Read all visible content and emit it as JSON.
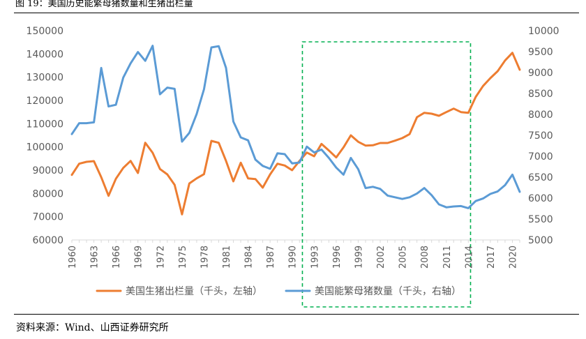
{
  "figure": {
    "title": "图 19：美国历史能繁母猪数量和生猪出栏量",
    "source": "资料来源：Wind、山西证券研究所"
  },
  "colors": {
    "hog_line": "#ED7D31",
    "sow_line": "#5B9BD5",
    "highlight_box": "#00B050",
    "axis": "#D9D9D9",
    "text": "#595959"
  },
  "chart_data": {
    "type": "line",
    "title": "",
    "x": [
      1960,
      1961,
      1962,
      1963,
      1964,
      1965,
      1966,
      1967,
      1968,
      1969,
      1970,
      1971,
      1972,
      1973,
      1974,
      1975,
      1976,
      1977,
      1978,
      1979,
      1980,
      1981,
      1982,
      1983,
      1984,
      1985,
      1986,
      1987,
      1988,
      1989,
      1990,
      1991,
      1992,
      1993,
      1994,
      1995,
      1996,
      1997,
      1998,
      1999,
      2000,
      2001,
      2002,
      2003,
      2004,
      2005,
      2006,
      2007,
      2008,
      2009,
      2010,
      2011,
      2012,
      2013,
      2014,
      2015,
      2016,
      2017,
      2018,
      2019,
      2020,
      2021
    ],
    "x_tick_labels": [
      "1960",
      "1963",
      "1966",
      "1969",
      "1972",
      "1975",
      "1978",
      "1981",
      "1984",
      "1987",
      "1990",
      "1993",
      "1996",
      "1999",
      "2002",
      "2005",
      "2008",
      "2011",
      "2014",
      "2017",
      "2020"
    ],
    "y_left": {
      "min": 60000,
      "max": 150000,
      "step": 10000,
      "ticks": [
        "60000",
        "70000",
        "80000",
        "90000",
        "100000",
        "110000",
        "120000",
        "130000",
        "140000",
        "150000"
      ]
    },
    "y_right": {
      "min": 5000,
      "max": 10000,
      "step": 500,
      "ticks": [
        "5000",
        "5500",
        "6000",
        "6500",
        "7000",
        "7500",
        "8000",
        "8500",
        "9000",
        "9500",
        "10000"
      ]
    },
    "series": [
      {
        "name": "美国生猪出栏量（千头，左轴）",
        "axis": "left",
        "color": "#ED7D31",
        "values": [
          88000,
          92800,
          93600,
          93900,
          87000,
          79000,
          86300,
          91000,
          94000,
          88800,
          101800,
          97500,
          90500,
          88200,
          83700,
          71000,
          84300,
          86500,
          88300,
          102600,
          101800,
          94000,
          85200,
          93200,
          86500,
          86200,
          82500,
          88200,
          92800,
          92000,
          90000,
          94000,
          97600,
          96000,
          101300,
          98500,
          95500,
          99800,
          105000,
          102200,
          100600,
          100700,
          101700,
          101700,
          102700,
          103800,
          105500,
          112800,
          114700,
          114300,
          113400,
          115000,
          116500,
          115000,
          114700,
          121500,
          126200,
          129600,
          132600,
          137200,
          140500,
          133200
        ]
      },
      {
        "name": "美国能繁母猪数量（千头，右轴）",
        "axis": "right",
        "color": "#5B9BD5",
        "values": [
          7530,
          7790,
          7790,
          7810,
          9110,
          8190,
          8230,
          8880,
          9220,
          9490,
          9280,
          9640,
          8480,
          8640,
          8610,
          7350,
          7560,
          8010,
          8600,
          9600,
          9630,
          9110,
          7830,
          7450,
          7380,
          6920,
          6770,
          6700,
          7070,
          7050,
          6830,
          6850,
          7230,
          7090,
          7160,
          6960,
          6730,
          6560,
          6960,
          6690,
          6240,
          6270,
          6220,
          6060,
          6020,
          5980,
          6020,
          6110,
          6240,
          6070,
          5850,
          5780,
          5800,
          5810,
          5760,
          5930,
          5990,
          6100,
          6160,
          6310,
          6560,
          6150
        ]
      }
    ],
    "highlight": {
      "x_start": 1991.4,
      "x_end": 2014.3
    },
    "legend_position": "bottom"
  }
}
